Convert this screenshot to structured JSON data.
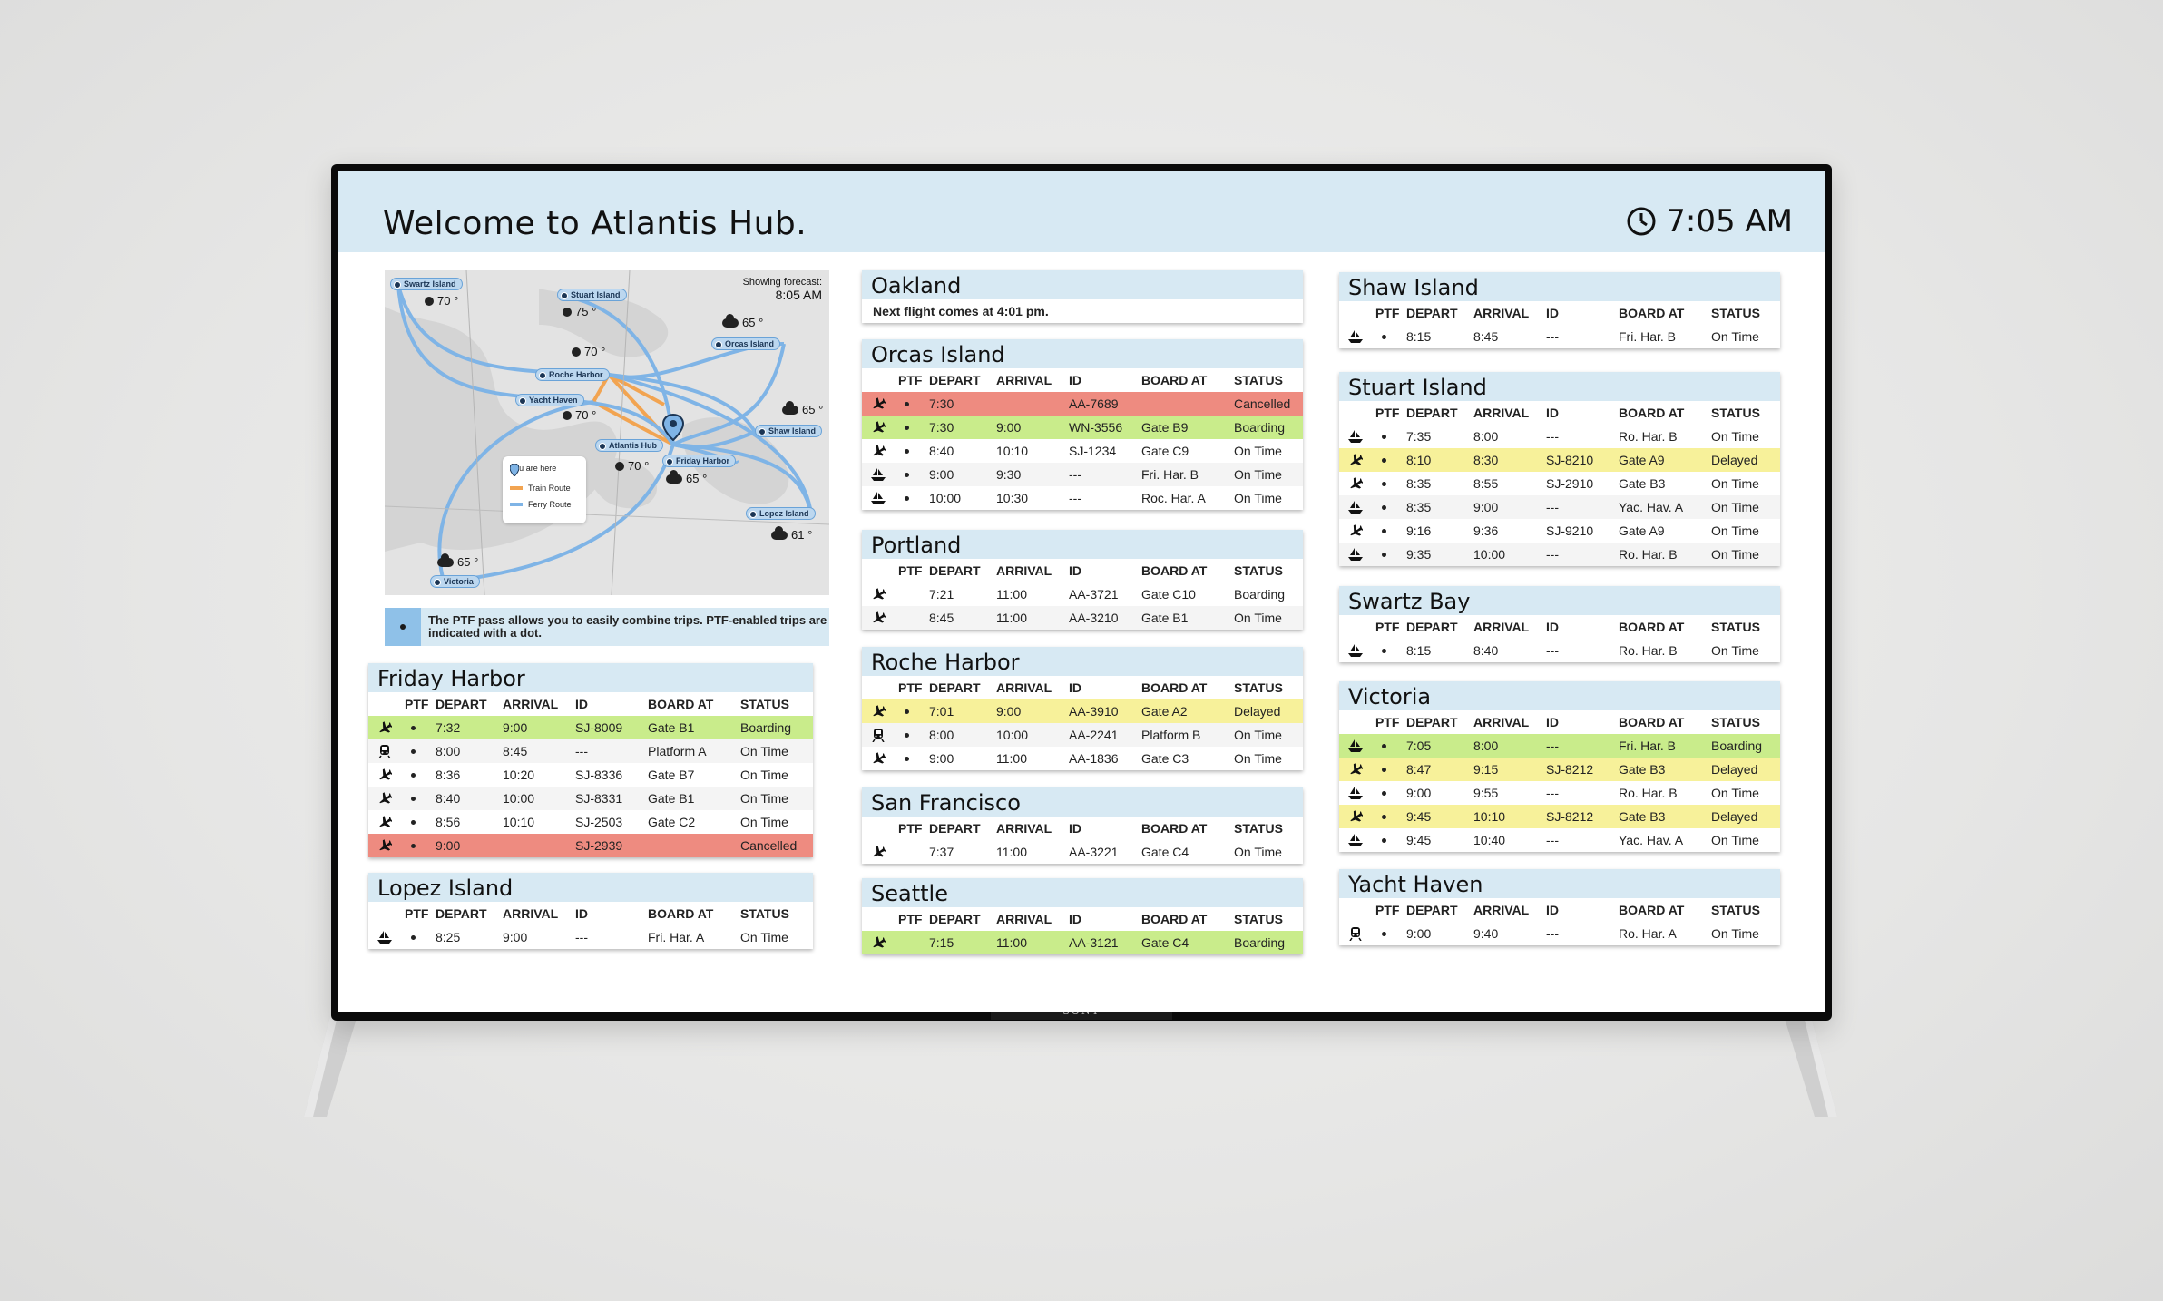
{
  "header": {
    "title": "Welcome to Atlantis Hub.",
    "time": "7:05 AM"
  },
  "tv": {
    "brand": "SONY"
  },
  "columns": [
    "PTF",
    "DEPART",
    "ARRIVAL",
    "ID",
    "BOARD AT",
    "STATUS"
  ],
  "map": {
    "forecast_label": "Showing forecast:",
    "forecast_time": "8:05 AM",
    "places": [
      "Swartz Island",
      "Stuart Island",
      "Orcas Island",
      "Roche Harbor",
      "Yacht Haven",
      "Shaw Island",
      "Atlantis Hub",
      "Friday Harbor",
      "Lopez Island",
      "Victoria"
    ],
    "temps": [
      "70 °",
      "75 °",
      "70 °",
      "65 °",
      "70 °",
      "65 °",
      "70 °",
      "65 °",
      "61 °",
      "65 °"
    ],
    "legend": {
      "here": "You are here",
      "train": "Train Route",
      "ferry": "Ferry Route"
    }
  },
  "ptf_note": "The PTF pass allows you to easily combine trips. PTF-enabled trips are indicated with a dot.",
  "boards": {
    "friday_harbor": {
      "title": "Friday Harbor",
      "rows": [
        {
          "icon": "plane",
          "ptf": true,
          "depart": "7:32",
          "arrival": "9:00",
          "id": "SJ-8009",
          "board": "Gate B1",
          "status": "Boarding",
          "hl": "g"
        },
        {
          "icon": "train",
          "ptf": true,
          "depart": "8:00",
          "arrival": "8:45",
          "id": "---",
          "board": "Platform A",
          "status": "On Time",
          "hl": ""
        },
        {
          "icon": "plane",
          "ptf": true,
          "depart": "8:36",
          "arrival": "10:20",
          "id": "SJ-8336",
          "board": "Gate B7",
          "status": "On Time",
          "hl": ""
        },
        {
          "icon": "plane",
          "ptf": true,
          "depart": "8:40",
          "arrival": "10:00",
          "id": "SJ-8331",
          "board": "Gate B1",
          "status": "On Time",
          "hl": ""
        },
        {
          "icon": "plane",
          "ptf": true,
          "depart": "8:56",
          "arrival": "10:10",
          "id": "SJ-2503",
          "board": "Gate C2",
          "status": "On Time",
          "hl": ""
        },
        {
          "icon": "plane",
          "ptf": true,
          "depart": "9:00",
          "arrival": "",
          "id": "SJ-2939",
          "board": "",
          "status": "Cancelled",
          "hl": "r"
        }
      ]
    },
    "lopez_island": {
      "title": "Lopez Island",
      "rows": [
        {
          "icon": "ship",
          "ptf": true,
          "depart": "8:25",
          "arrival": "9:00",
          "id": "---",
          "board": "Fri. Har. A",
          "status": "On Time",
          "hl": ""
        }
      ]
    },
    "oakland": {
      "title": "Oakland",
      "note": "Next flight comes at 4:01 pm."
    },
    "orcas_island": {
      "title": "Orcas Island",
      "rows": [
        {
          "icon": "plane",
          "ptf": true,
          "depart": "7:30",
          "arrival": "",
          "id": "AA-7689",
          "board": "",
          "status": "Cancelled",
          "hl": "r"
        },
        {
          "icon": "plane",
          "ptf": true,
          "depart": "7:30",
          "arrival": "9:00",
          "id": "WN-3556",
          "board": "Gate B9",
          "status": "Boarding",
          "hl": "g"
        },
        {
          "icon": "plane",
          "ptf": true,
          "depart": "8:40",
          "arrival": "10:10",
          "id": "SJ-1234",
          "board": "Gate C9",
          "status": "On Time",
          "hl": ""
        },
        {
          "icon": "ship",
          "ptf": true,
          "depart": "9:00",
          "arrival": "9:30",
          "id": "---",
          "board": "Fri. Har. B",
          "status": "On Time",
          "hl": ""
        },
        {
          "icon": "ship",
          "ptf": true,
          "depart": "10:00",
          "arrival": "10:30",
          "id": "---",
          "board": "Roc. Har. A",
          "status": "On Time",
          "hl": ""
        }
      ]
    },
    "portland": {
      "title": "Portland",
      "rows": [
        {
          "icon": "plane",
          "ptf": false,
          "depart": "7:21",
          "arrival": "11:00",
          "id": "AA-3721",
          "board": "Gate C10",
          "status": "Boarding",
          "hl": ""
        },
        {
          "icon": "plane",
          "ptf": false,
          "depart": "8:45",
          "arrival": "11:00",
          "id": "AA-3210",
          "board": "Gate B1",
          "status": "On Time",
          "hl": ""
        }
      ]
    },
    "roche_harbor": {
      "title": "Roche Harbor",
      "rows": [
        {
          "icon": "plane",
          "ptf": true,
          "depart": "7:01",
          "arrival": "9:00",
          "id": "AA-3910",
          "board": "Gate A2",
          "status": "Delayed",
          "hl": "y"
        },
        {
          "icon": "train",
          "ptf": true,
          "depart": "8:00",
          "arrival": "10:00",
          "id": "AA-2241",
          "board": "Platform B",
          "status": "On Time",
          "hl": ""
        },
        {
          "icon": "plane",
          "ptf": true,
          "depart": "9:00",
          "arrival": "11:00",
          "id": "AA-1836",
          "board": "Gate C3",
          "status": "On Time",
          "hl": ""
        }
      ]
    },
    "san_francisco": {
      "title": "San Francisco",
      "rows": [
        {
          "icon": "plane",
          "ptf": false,
          "depart": "7:37",
          "arrival": "11:00",
          "id": "AA-3221",
          "board": "Gate C4",
          "status": "On Time",
          "hl": ""
        }
      ]
    },
    "seattle": {
      "title": "Seattle",
      "rows": [
        {
          "icon": "plane",
          "ptf": false,
          "depart": "7:15",
          "arrival": "11:00",
          "id": "AA-3121",
          "board": "Gate C4",
          "status": "Boarding",
          "hl": "g"
        }
      ]
    },
    "shaw_island": {
      "title": "Shaw Island",
      "rows": [
        {
          "icon": "ship",
          "ptf": true,
          "depart": "8:15",
          "arrival": "8:45",
          "id": "---",
          "board": "Fri. Har. B",
          "status": "On Time",
          "hl": ""
        }
      ]
    },
    "stuart_island": {
      "title": "Stuart Island",
      "rows": [
        {
          "icon": "ship",
          "ptf": true,
          "depart": "7:35",
          "arrival": "8:00",
          "id": "---",
          "board": "Ro. Har. B",
          "status": "On Time",
          "hl": ""
        },
        {
          "icon": "plane",
          "ptf": true,
          "depart": "8:10",
          "arrival": "8:30",
          "id": "SJ-8210",
          "board": "Gate A9",
          "status": "Delayed",
          "hl": "y"
        },
        {
          "icon": "plane",
          "ptf": true,
          "depart": "8:35",
          "arrival": "8:55",
          "id": "SJ-2910",
          "board": "Gate B3",
          "status": "On Time",
          "hl": ""
        },
        {
          "icon": "ship",
          "ptf": true,
          "depart": "8:35",
          "arrival": "9:00",
          "id": "---",
          "board": "Yac. Hav. A",
          "status": "On Time",
          "hl": ""
        },
        {
          "icon": "plane",
          "ptf": true,
          "depart": "9:16",
          "arrival": "9:36",
          "id": "SJ-9210",
          "board": "Gate A9",
          "status": "On Time",
          "hl": ""
        },
        {
          "icon": "ship",
          "ptf": true,
          "depart": "9:35",
          "arrival": "10:00",
          "id": "---",
          "board": "Ro. Har. B",
          "status": "On Time",
          "hl": ""
        }
      ]
    },
    "swartz_bay": {
      "title": "Swartz Bay",
      "rows": [
        {
          "icon": "ship",
          "ptf": true,
          "depart": "8:15",
          "arrival": "8:40",
          "id": "---",
          "board": "Ro. Har. B",
          "status": "On Time",
          "hl": ""
        }
      ]
    },
    "victoria": {
      "title": "Victoria",
      "rows": [
        {
          "icon": "ship",
          "ptf": true,
          "depart": "7:05",
          "arrival": "8:00",
          "id": "---",
          "board": "Fri. Har. B",
          "status": "Boarding",
          "hl": "g"
        },
        {
          "icon": "plane",
          "ptf": true,
          "depart": "8:47",
          "arrival": "9:15",
          "id": "SJ-8212",
          "board": "Gate B3",
          "status": "Delayed",
          "hl": "y"
        },
        {
          "icon": "ship",
          "ptf": true,
          "depart": "9:00",
          "arrival": "9:55",
          "id": "---",
          "board": "Ro. Har. B",
          "status": "On Time",
          "hl": ""
        },
        {
          "icon": "plane",
          "ptf": true,
          "depart": "9:45",
          "arrival": "10:10",
          "id": "SJ-8212",
          "board": "Gate B3",
          "status": "Delayed",
          "hl": "y"
        },
        {
          "icon": "ship",
          "ptf": true,
          "depart": "9:45",
          "arrival": "10:40",
          "id": "---",
          "board": "Yac. Hav. A",
          "status": "On Time",
          "hl": ""
        }
      ]
    },
    "yacht_haven": {
      "title": "Yacht Haven",
      "rows": [
        {
          "icon": "train",
          "ptf": true,
          "depart": "9:00",
          "arrival": "9:40",
          "id": "---",
          "board": "Ro. Har. A",
          "status": "On Time",
          "hl": ""
        }
      ]
    }
  }
}
